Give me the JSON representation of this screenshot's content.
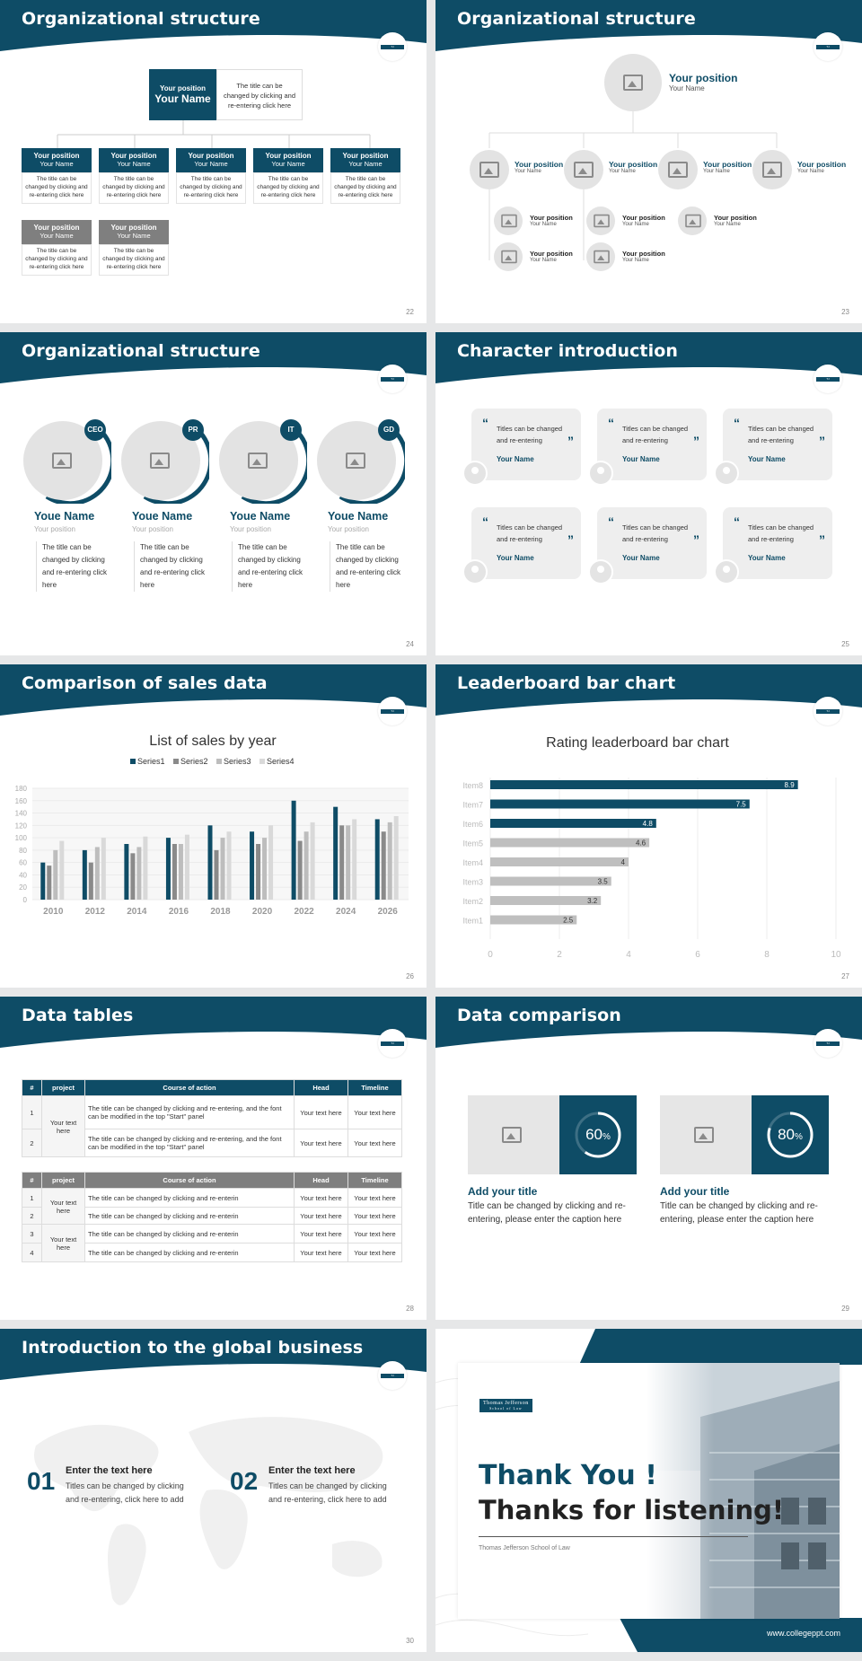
{
  "slides": [
    {
      "title": "Organizational structure",
      "page": "22",
      "top_box": {
        "position": "Your position",
        "name": "Your Name",
        "desc": "The title can be changed by clicking and re-entering click here"
      },
      "boxes": [
        {
          "position": "Your position",
          "name": "Your Name",
          "desc": "The title can be changed by clicking and re-entering click here",
          "tone": "teal"
        },
        {
          "position": "Your position",
          "name": "Your Name",
          "desc": "The title can be changed by clicking and re-entering click here",
          "tone": "teal"
        },
        {
          "position": "Your position",
          "name": "Your Name",
          "desc": "The title can be changed by clicking and re-entering click here",
          "tone": "teal"
        },
        {
          "position": "Your position",
          "name": "Your Name",
          "desc": "The title can be changed by clicking and re-entering click here",
          "tone": "teal"
        },
        {
          "position": "Your position",
          "name": "Your Name",
          "desc": "The title can be changed by clicking and re-entering click here",
          "tone": "teal"
        },
        {
          "position": "Your position",
          "name": "Your Name",
          "desc": "The title can be changed by clicking and re-entering click here",
          "tone": "gray"
        },
        {
          "position": "Your position",
          "name": "Your Name",
          "desc": "The title can be changed by clicking and re-entering click here",
          "tone": "gray"
        }
      ]
    },
    {
      "title": "Organizational structure",
      "page": "23",
      "top": {
        "position": "Your position",
        "name": "Your Name"
      },
      "mid": [
        {
          "position": "Your position",
          "name": "Your Name"
        },
        {
          "position": "Your position",
          "name": "Your Name"
        },
        {
          "position": "Your position",
          "name": "Your Name"
        },
        {
          "position": "Your position",
          "name": "Your Name"
        }
      ],
      "sub": [
        {
          "position": "Your position",
          "name": "Your Name"
        },
        {
          "position": "Your position",
          "name": "Your Name"
        },
        {
          "position": "Your position",
          "name": "Your Name"
        },
        {
          "position": "Your position",
          "name": "Your Name"
        },
        {
          "position": "Your position",
          "name": "Your Name"
        }
      ]
    },
    {
      "title": "Organizational structure",
      "page": "24",
      "people": [
        {
          "badge": "CEO",
          "name": "Youe Name",
          "position": "Your position",
          "desc": "The title can be changed by clicking and re-entering click here"
        },
        {
          "badge": "PR",
          "name": "Youe Name",
          "position": "Your position",
          "desc": "The title can be changed by clicking and re-entering click here"
        },
        {
          "badge": "IT",
          "name": "Youe Name",
          "position": "Your position",
          "desc": "The title can be changed by clicking and re-entering click here"
        },
        {
          "badge": "GD",
          "name": "Youe Name",
          "position": "Your position",
          "desc": "The title can be changed by clicking and re-entering click here"
        }
      ]
    },
    {
      "title": "Character introduction",
      "page": "25",
      "quote_text": "Titles can be changed and re-entering",
      "name": "Your Name",
      "open_quote": "“",
      "close_quote": "”"
    },
    {
      "title": "Comparison of sales data",
      "page": "26"
    },
    {
      "title": "Leaderboard bar chart",
      "page": "27"
    },
    {
      "title": "Data tables",
      "page": "28",
      "headers": [
        "#",
        "project",
        "Course of action",
        "Head",
        "Timeline"
      ],
      "table1": {
        "project": "Your text here",
        "rows": [
          {
            "n": "1",
            "action": "The title can be changed by clicking and re-entering, and the font can be modified in the top \"Start\" panel",
            "head": "Your text here",
            "time": "Your text here"
          },
          {
            "n": "2",
            "action": "The title can be changed by clicking and re-entering, and the font can be modified in the top \"Start\" panel",
            "head": "Your text here",
            "time": "Your text here"
          }
        ]
      },
      "table2": {
        "project": "Your text here",
        "rows": [
          {
            "n": "1",
            "action": "The title can be changed by clicking and re-enterin",
            "head": "Your text here",
            "time": "Your text here"
          },
          {
            "n": "2",
            "action": "The title can be changed by clicking and re-enterin",
            "head": "Your text here",
            "time": "Your text here"
          },
          {
            "n": "3",
            "action": "The title can be changed by clicking and re-enterin",
            "head": "Your text here",
            "time": "Your text here"
          },
          {
            "n": "4",
            "action": "The title can be changed by clicking and re-enterin",
            "head": "Your text here",
            "time": "Your text here"
          }
        ]
      }
    },
    {
      "title": "Data comparison",
      "page": "29",
      "items": [
        {
          "percent": "60",
          "unit": "%",
          "value": 0.6,
          "heading": "Add your title",
          "text": "Title can be changed by clicking and re-entering, please enter the caption here"
        },
        {
          "percent": "80",
          "unit": "%",
          "value": 0.8,
          "heading": "Add your title",
          "text": "Title can be changed by clicking and re-entering, please enter the caption here"
        }
      ]
    },
    {
      "title": "Introduction to the global business",
      "page": "30",
      "items": [
        {
          "num": "01",
          "heading": "Enter the text here",
          "text": "Titles can be changed by clicking and re-entering, click here to add"
        },
        {
          "num": "02",
          "heading": "Enter the text here",
          "text": "Titles can be changed by clicking and re-entering, click here to add"
        }
      ]
    },
    {
      "thanks1": "Thank You !",
      "thanks2": "Thanks for listening!",
      "school": "Thomas Jefferson School of Law",
      "logo_line1": "Thomas Jefferson",
      "logo_line2": "School of Law",
      "url": "www.collegeppt.com"
    }
  ],
  "colors": {
    "teal": "#0e4c66",
    "gray": "#7f7f7f",
    "light": "#e6e6e6",
    "bar_gray": "#bfbfbf"
  },
  "chart_data": [
    {
      "type": "bar",
      "title": "List of sales by year",
      "categories": [
        "2010",
        "2012",
        "2014",
        "2016",
        "2018",
        "2020",
        "2022",
        "2024",
        "2026"
      ],
      "series": [
        {
          "name": "Series1",
          "values": [
            60,
            80,
            90,
            100,
            120,
            110,
            160,
            150,
            130
          ]
        },
        {
          "name": "Series2",
          "values": [
            55,
            60,
            75,
            90,
            80,
            90,
            95,
            120,
            110
          ]
        },
        {
          "name": "Series3",
          "values": [
            80,
            85,
            85,
            90,
            100,
            100,
            110,
            120,
            125
          ]
        },
        {
          "name": "Series4",
          "values": [
            95,
            100,
            102,
            105,
            110,
            120,
            125,
            130,
            135
          ]
        }
      ],
      "ylim": [
        0,
        180
      ],
      "yticks": [
        0,
        20,
        40,
        60,
        80,
        100,
        120,
        140,
        160,
        180
      ],
      "legend": "top"
    },
    {
      "type": "bar",
      "orientation": "horizontal",
      "title": "Rating leaderboard bar chart",
      "categories": [
        "Item8",
        "Item7",
        "Item6",
        "Item5",
        "Item4",
        "Item3",
        "Item2",
        "Item1"
      ],
      "values": [
        8.9,
        7.5,
        4.8,
        4.6,
        4,
        3.5,
        3.2,
        2.5
      ],
      "labels": [
        "8.9",
        "7.5",
        "4.8",
        "4.6",
        "4",
        "3.5",
        "3.2",
        "2.5"
      ],
      "xlim": [
        0,
        10
      ],
      "xticks": [
        0,
        2,
        4,
        6,
        8,
        10
      ]
    }
  ]
}
